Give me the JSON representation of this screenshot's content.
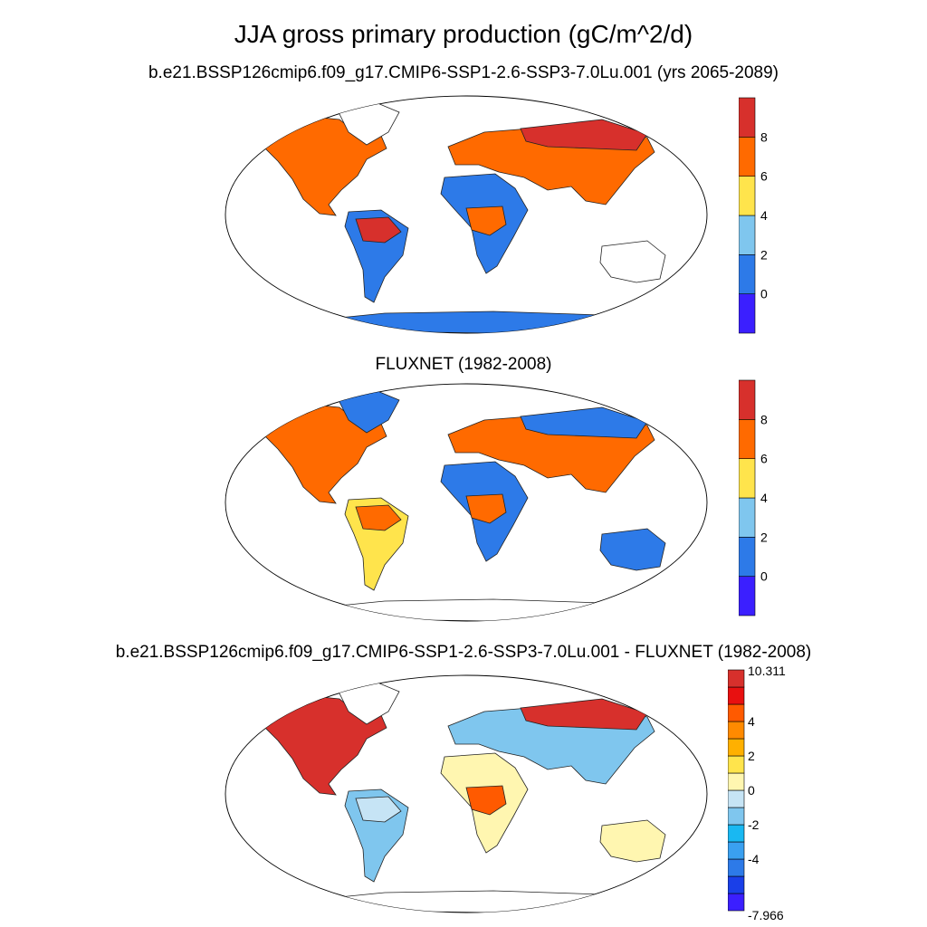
{
  "title": "JJA gross primary production (gC/m^2/d)",
  "panels": [
    {
      "subtitle": "b.e21.BSSP126cmip6.f09_g17.CMIP6-SSP1-2.6-SSP3-7.0Lu.001 (yrs 2065-2089)",
      "colorbar": {
        "colors": [
          "#3b1fff",
          "#2d7ae8",
          "#7fc6ee",
          "#ffe44c",
          "#ff6a00",
          "#d7302c"
        ],
        "tick_labels": [
          "0",
          "2",
          "4",
          "6",
          "8"
        ]
      },
      "map_fill": {
        "north_america": "#ff6a00",
        "south_america": "#2d7ae8",
        "amazon": "#d7302c",
        "europe_asia": "#ff6a00",
        "siberia": "#d7302c",
        "africa": "#2d7ae8",
        "central_africa": "#ff6a00",
        "australia": "#ffffff",
        "antarctica": "#2d7ae8",
        "greenland": "#ffffff"
      }
    },
    {
      "subtitle": "FLUXNET (1982-2008)",
      "colorbar": {
        "colors": [
          "#3b1fff",
          "#2d7ae8",
          "#7fc6ee",
          "#ffe44c",
          "#ff6a00",
          "#d7302c"
        ],
        "tick_labels": [
          "0",
          "2",
          "4",
          "6",
          "8"
        ]
      },
      "map_fill": {
        "north_america": "#ff6a00",
        "south_america": "#ffe44c",
        "amazon": "#ff6a00",
        "europe_asia": "#ff6a00",
        "siberia": "#2d7ae8",
        "africa": "#2d7ae8",
        "central_africa": "#ff6a00",
        "australia": "#2d7ae8",
        "antarctica": "#ffffff",
        "greenland": "#2d7ae8"
      }
    },
    {
      "subtitle": "b.e21.BSSP126cmip6.f09_g17.CMIP6-SSP1-2.6-SSP3-7.0Lu.001 - FLUXNET (1982-2008)",
      "colorbar": {
        "colors": [
          "#3b1fff",
          "#1a3fe8",
          "#2d7ae8",
          "#3aa0f0",
          "#19b8f2",
          "#7fc6ee",
          "#c6e4f5",
          "#fff6b0",
          "#ffe44c",
          "#ffb000",
          "#ff8a00",
          "#ff5a00",
          "#e81010",
          "#d7302c"
        ],
        "tick_labels": [
          "-7.966",
          "-4",
          "-2",
          "0",
          "2",
          "4",
          "10.311"
        ]
      },
      "map_fill": {
        "north_america": "#d7302c",
        "south_america": "#7fc6ee",
        "amazon": "#c6e4f5",
        "europe_asia": "#7fc6ee",
        "siberia": "#d7302c",
        "africa": "#fff6b0",
        "central_africa": "#ff5a00",
        "australia": "#fff6b0",
        "antarctica": "#ffffff",
        "greenland": "#ffffff"
      }
    }
  ]
}
